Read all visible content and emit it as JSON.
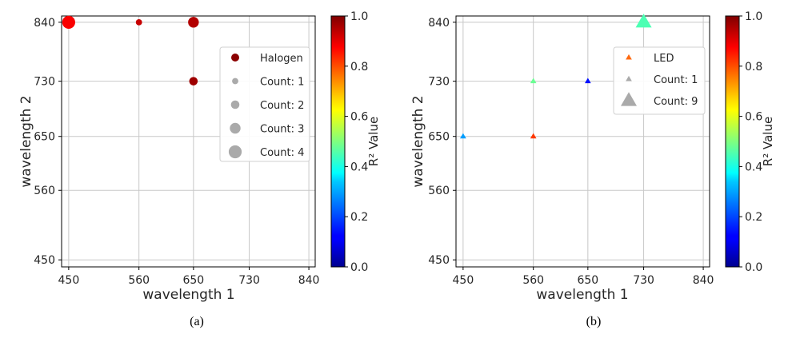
{
  "chart_data": [
    {
      "type": "scatter",
      "panel_caption": "(a)",
      "xlabel": "wavelength 1",
      "ylabel": "wavelength 2",
      "x_ticks": [
        450,
        560,
        650,
        730,
        840
      ],
      "y_ticks": [
        450,
        560,
        650,
        730,
        840
      ],
      "grid": true,
      "marker": "circle",
      "colorbar": {
        "label": "R² Value",
        "min": 0.0,
        "max": 1.0,
        "ticks": [
          "0.0",
          "0.2",
          "0.4",
          "0.6",
          "0.8",
          "1.0"
        ],
        "colormap": "jet"
      },
      "legend": {
        "position": "upper-right",
        "entries": [
          {
            "label": "Halogen",
            "color": "#8b0000",
            "count": 0
          },
          {
            "label": "Count: 1",
            "color": "#aaaaaa",
            "count": 1
          },
          {
            "label": "Count: 2",
            "color": "#aaaaaa",
            "count": 2
          },
          {
            "label": "Count: 3",
            "color": "#aaaaaa",
            "count": 3
          },
          {
            "label": "Count: 4",
            "color": "#aaaaaa",
            "count": 4
          }
        ]
      },
      "points": [
        {
          "x": 450,
          "y": 840,
          "count": 4,
          "r2": 0.88
        },
        {
          "x": 560,
          "y": 840,
          "count": 1,
          "r2": 0.93
        },
        {
          "x": 650,
          "y": 840,
          "count": 3,
          "r2": 0.95
        },
        {
          "x": 650,
          "y": 730,
          "count": 2,
          "r2": 0.97
        }
      ]
    },
    {
      "type": "scatter",
      "panel_caption": "(b)",
      "xlabel": "wavelength 1",
      "ylabel": "wavelength 2",
      "x_ticks": [
        450,
        560,
        650,
        730,
        840
      ],
      "y_ticks": [
        450,
        560,
        650,
        730,
        840
      ],
      "grid": true,
      "marker": "triangle",
      "colorbar": {
        "label": "R² Value",
        "min": 0.0,
        "max": 1.0,
        "ticks": [
          "0.0",
          "0.2",
          "0.4",
          "0.6",
          "0.8",
          "1.0"
        ],
        "colormap": "jet"
      },
      "legend": {
        "position": "upper-right",
        "entries": [
          {
            "label": "LED",
            "color": "#ff6a10",
            "count": 0
          },
          {
            "label": "Count: 1",
            "color": "#aaaaaa",
            "count": 1
          },
          {
            "label": "Count: 9",
            "color": "#aaaaaa",
            "count": 9
          }
        ]
      },
      "points": [
        {
          "x": 450,
          "y": 650,
          "count": 1,
          "r2": 0.28
        },
        {
          "x": 560,
          "y": 650,
          "count": 1,
          "r2": 0.82
        },
        {
          "x": 560,
          "y": 730,
          "count": 1,
          "r2": 0.48
        },
        {
          "x": 650,
          "y": 730,
          "count": 1,
          "r2": 0.14
        },
        {
          "x": 730,
          "y": 840,
          "count": 9,
          "r2": 0.45
        }
      ]
    }
  ]
}
